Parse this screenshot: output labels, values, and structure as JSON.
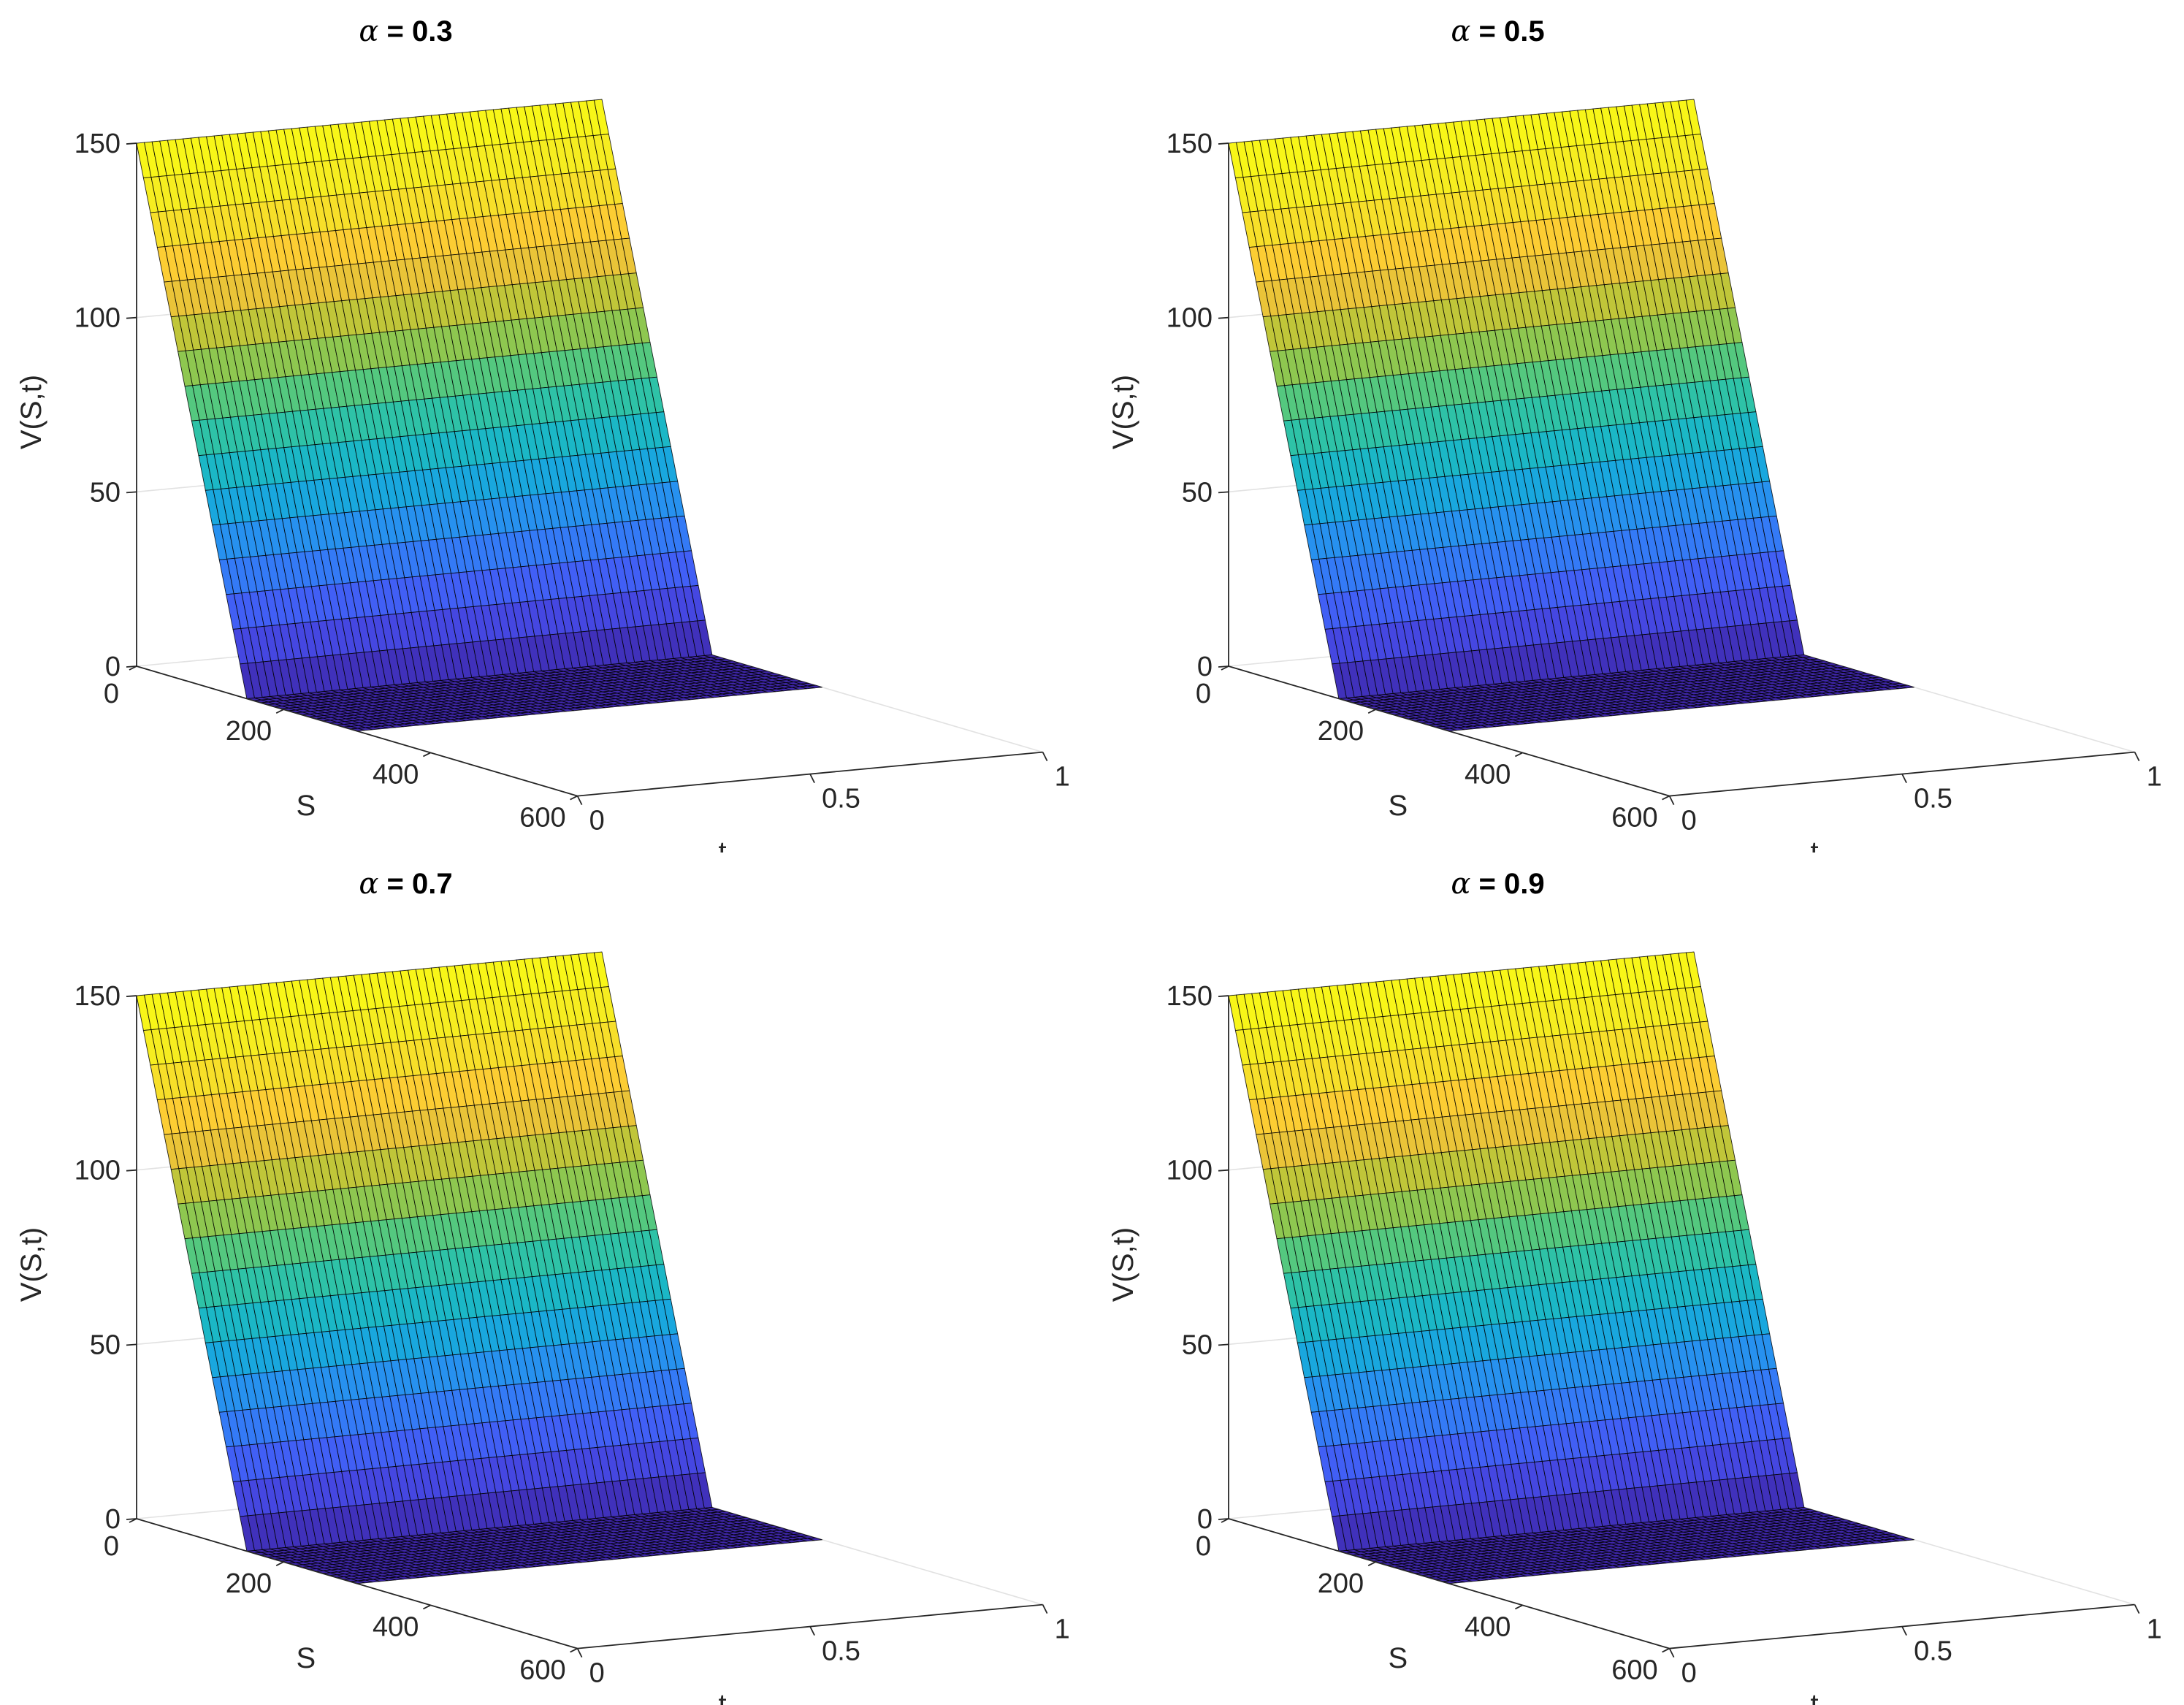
{
  "chart_data": [
    {
      "type": "surface",
      "title": {
        "symbol": "α",
        "text": " = 0.3"
      },
      "xlabel": "S",
      "ylabel": "t",
      "zlabel": "V(S,t)",
      "x_ticks": [
        "0",
        "200",
        "400",
        "600"
      ],
      "y_ticks": [
        "1",
        "0.5",
        "0"
      ],
      "z_ticks": [
        "0",
        "50",
        "100",
        "150"
      ],
      "xlim": [
        0,
        600
      ],
      "ylim": [
        0,
        1
      ],
      "zlim": [
        0,
        150
      ],
      "strike": 150,
      "s_max": 300,
      "surface_formula": "V = max(strike - S, 0) for S in [0, s_max], t in [0, 1]",
      "colormap": "parula",
      "grid": true
    },
    {
      "type": "surface",
      "title": {
        "symbol": "α",
        "text": " = 0.5"
      },
      "xlabel": "S",
      "ylabel": "t",
      "zlabel": "V(S,t)",
      "x_ticks": [
        "0",
        "200",
        "400",
        "600"
      ],
      "y_ticks": [
        "1",
        "0.5",
        "0"
      ],
      "z_ticks": [
        "0",
        "50",
        "100",
        "150"
      ],
      "xlim": [
        0,
        600
      ],
      "ylim": [
        0,
        1
      ],
      "zlim": [
        0,
        150
      ],
      "strike": 150,
      "s_max": 300,
      "surface_formula": "V = max(strike - S, 0) for S in [0, s_max], t in [0, 1]",
      "colormap": "parula",
      "grid": true
    },
    {
      "type": "surface",
      "title": {
        "symbol": "α",
        "text": " = 0.7"
      },
      "xlabel": "S",
      "ylabel": "t",
      "zlabel": "V(S,t)",
      "x_ticks": [
        "0",
        "200",
        "400",
        "600"
      ],
      "y_ticks": [
        "1",
        "0.5",
        "0"
      ],
      "z_ticks": [
        "0",
        "50",
        "100",
        "150"
      ],
      "xlim": [
        0,
        600
      ],
      "ylim": [
        0,
        1
      ],
      "zlim": [
        0,
        150
      ],
      "strike": 150,
      "s_max": 300,
      "surface_formula": "V = max(strike - S, 0) for S in [0, s_max], t in [0, 1]",
      "colormap": "parula",
      "grid": true
    },
    {
      "type": "surface",
      "title": {
        "symbol": "α",
        "text": " = 0.9"
      },
      "xlabel": "S",
      "ylabel": "t",
      "zlabel": "V(S,t)",
      "x_ticks": [
        "0",
        "200",
        "400",
        "600"
      ],
      "y_ticks": [
        "1",
        "0.5",
        "0"
      ],
      "z_ticks": [
        "0",
        "50",
        "100",
        "150"
      ],
      "xlim": [
        0,
        600
      ],
      "ylim": [
        0,
        1
      ],
      "zlim": [
        0,
        150
      ],
      "strike": 150,
      "s_max": 300,
      "surface_formula": "V = max(strike - S, 0) for S in [0, s_max], t in [0, 1]",
      "colormap": "parula",
      "grid": true
    }
  ]
}
